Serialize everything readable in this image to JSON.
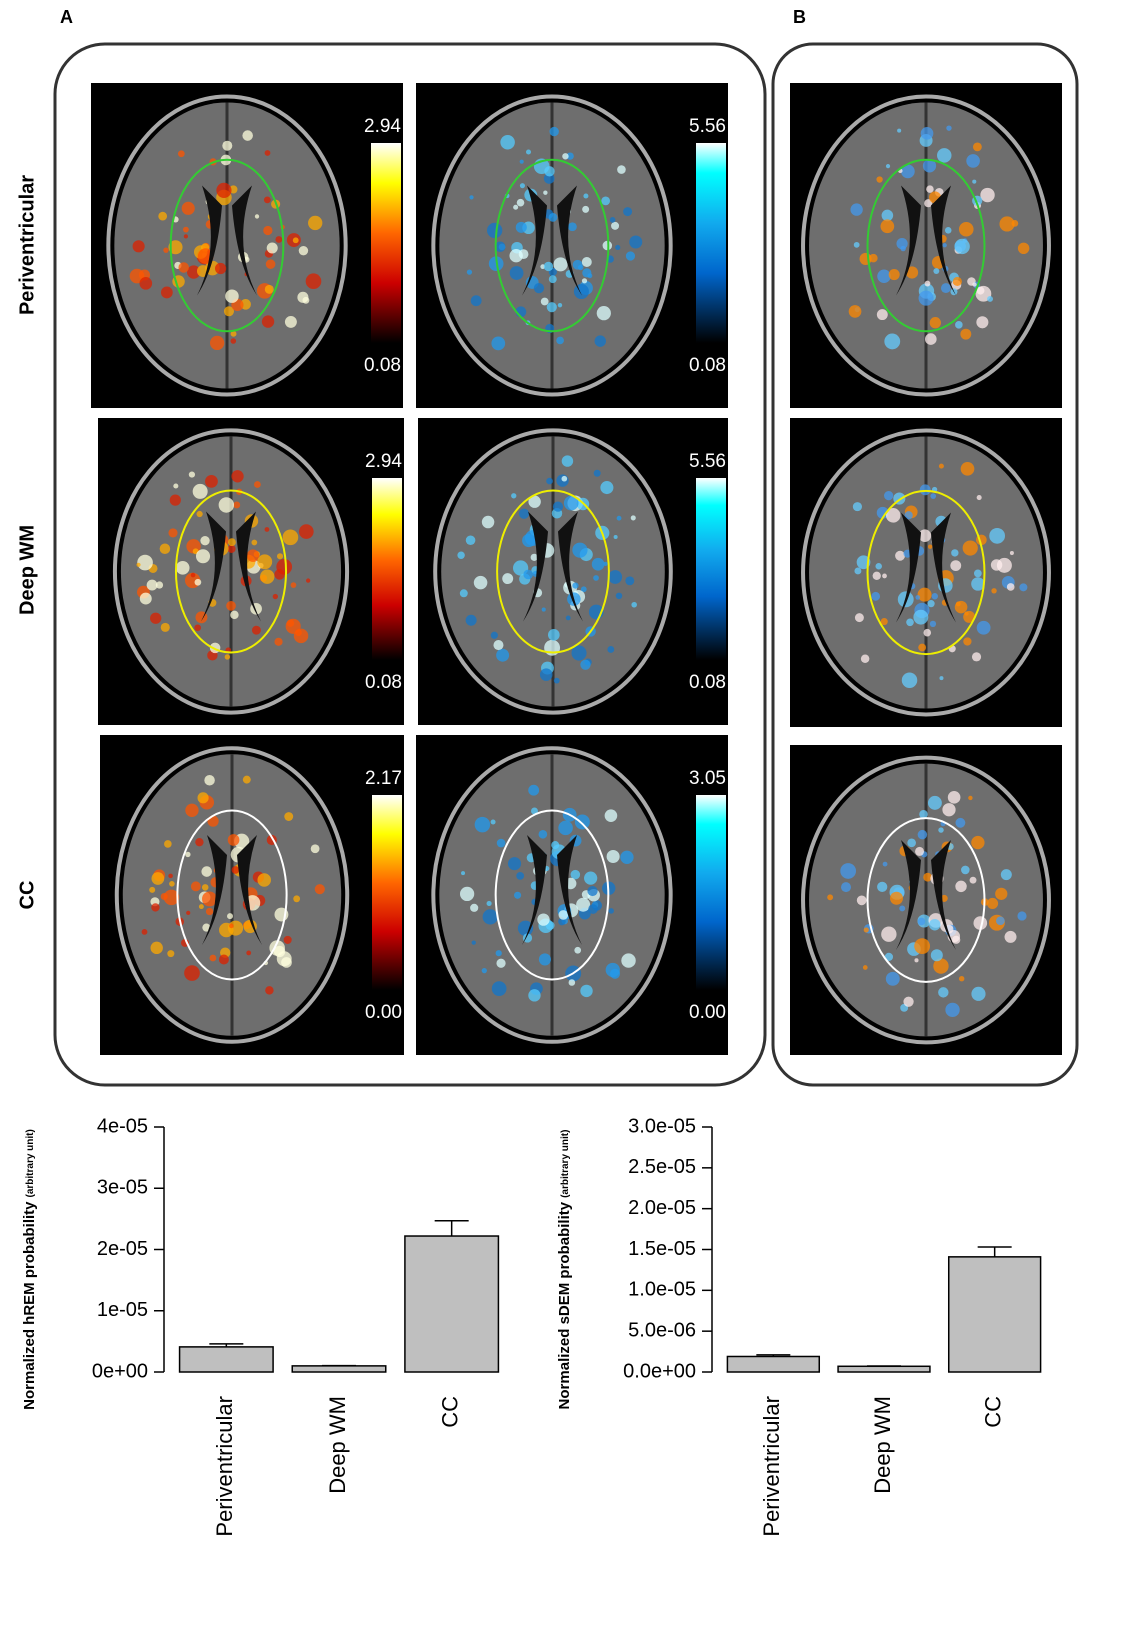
{
  "panel_labels": [
    "A",
    "B"
  ],
  "row_labels": [
    "Periventricular",
    "Deep WM",
    "CC"
  ],
  "colorbars": [
    {
      "top": "2.94",
      "bottom": "0.08"
    },
    {
      "top": "5.56",
      "bottom": "0.08"
    },
    {
      "top": "2.94",
      "bottom": "0.08"
    },
    {
      "top": "5.56",
      "bottom": "0.08"
    },
    {
      "top": "2.17",
      "bottom": "0.00"
    },
    {
      "top": "3.05",
      "bottom": "0.00"
    }
  ],
  "chart_data": [
    {
      "type": "bar",
      "ylabel": "Normalized hREM probability",
      "ylabel_note": "(arbitrary unit)",
      "categories": [
        "Periventricular",
        "Deep WM",
        "CC"
      ],
      "values": [
        4.1e-06,
        1e-06,
        2.22e-05
      ],
      "errors": [
        5e-07,
        5e-08,
        2.5e-06
      ],
      "color": "#bfbfbf",
      "ylim": [
        0,
        4e-05
      ],
      "yticks": [
        {
          "value": 0,
          "label": "0e+00"
        },
        {
          "value": 1e-05,
          "label": "1e-05"
        },
        {
          "value": 2e-05,
          "label": "2e-05"
        },
        {
          "value": 3e-05,
          "label": "3e-05"
        },
        {
          "value": 4e-05,
          "label": "4e-05"
        }
      ]
    },
    {
      "type": "bar",
      "ylabel": "Normalized sDEM probability",
      "ylabel_note": "(arbitrary unit)",
      "categories": [
        "Periventricular",
        "Deep WM",
        "CC"
      ],
      "values": [
        1.9e-06,
        7e-07,
        1.41e-05
      ],
      "errors": [
        2e-07,
        3e-08,
        1.2e-06
      ],
      "color": "#bfbfbf",
      "ylim": [
        0,
        3e-05
      ],
      "yticks": [
        {
          "value": 0,
          "label": "0.0e+00"
        },
        {
          "value": 5e-06,
          "label": "5.0e-06"
        },
        {
          "value": 1e-05,
          "label": "1.0e-05"
        },
        {
          "value": 1.5e-05,
          "label": "1.5e-05"
        },
        {
          "value": 2e-05,
          "label": "2.0e-05"
        },
        {
          "value": 2.5e-05,
          "label": "2.5e-05"
        },
        {
          "value": 3e-05,
          "label": "3.0e-05"
        }
      ]
    }
  ]
}
